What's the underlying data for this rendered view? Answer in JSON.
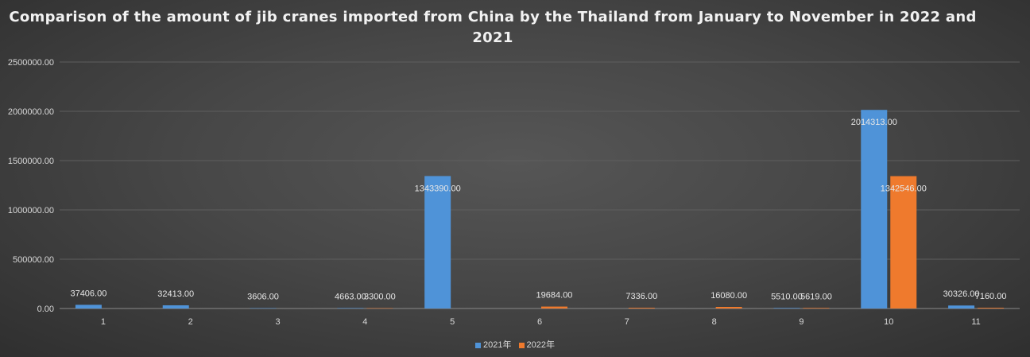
{
  "chart_data": {
    "type": "bar",
    "title": "Comparison of the amount of jib cranes imported from China by the Thailand from January to November in 2022 and 2021",
    "categories": [
      "1",
      "2",
      "3",
      "4",
      "5",
      "6",
      "7",
      "8",
      "9",
      "10",
      "11"
    ],
    "series": [
      {
        "name": "2021年",
        "color": "#4f93d8",
        "values": [
          37406,
          32413,
          3606,
          4663,
          1343390,
          0,
          0,
          0,
          5510,
          2014313,
          30326
        ],
        "labels": [
          "37406.00",
          "32413.00",
          "3606.00",
          "4663.00",
          "1343390.00",
          "",
          "",
          "",
          "5510.00",
          "2014313.00",
          "30326.00"
        ]
      },
      {
        "name": "2022年",
        "color": "#ef7a2d",
        "values": [
          0,
          0,
          0,
          3300,
          0,
          19684,
          7336,
          16080,
          5619,
          1342546,
          7160
        ],
        "labels": [
          "",
          "",
          "",
          "3300.00",
          "",
          "19684.00",
          "7336.00",
          "16080.00",
          "5619.00",
          "1342546.00",
          "7160.00"
        ]
      }
    ],
    "yticks": [
      "0.00",
      "500000.00",
      "1000000.00",
      "1500000.00",
      "2000000.00",
      "2500000.00"
    ],
    "ylim": [
      0,
      2500000
    ],
    "grid": true,
    "legend": "bottom"
  }
}
